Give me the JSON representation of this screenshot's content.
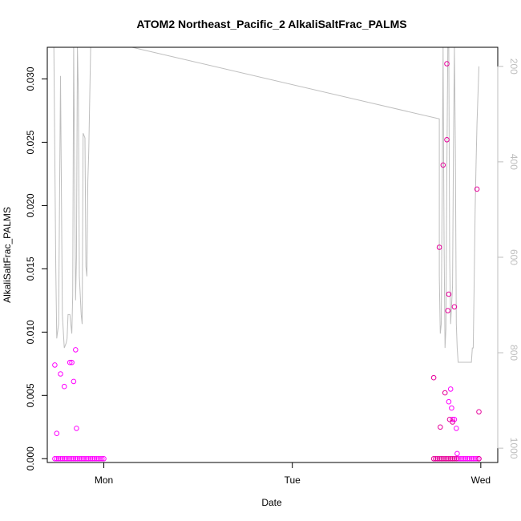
{
  "chart_data": {
    "type": "scatter",
    "title": "ATOM2 Northeast_Pacific_2 AlkaliSaltFrac_PALMS",
    "xlabel": "Date",
    "ylabel": "AlkaliSaltFrac_PALMS",
    "x_tick_labels": [
      "Mon",
      "Tue",
      "Wed"
    ],
    "x_ticks": [
      1.0,
      2.0,
      3.0
    ],
    "xlim": [
      0.7,
      3.09
    ],
    "ylim": [
      -0.0003,
      0.0325
    ],
    "y_ticks": [
      "0.000",
      "0.005",
      "0.010",
      "0.015",
      "0.020",
      "0.025",
      "0.030"
    ],
    "y2_ticks": [
      "200",
      "400",
      "600",
      "800",
      "1000"
    ],
    "y2lim": [
      1030,
      160
    ],
    "grid": false,
    "colors": {
      "points_bright": "#ff00ff",
      "points_dark": "#e6009a",
      "secondary_line": "#bebebe",
      "axis": "#000000"
    },
    "series": [
      {
        "marker": "open-circle",
        "color_key": "points_bright",
        "points": [
          [
            0.74,
            0.0074
          ],
          [
            0.75,
            0.002
          ],
          [
            0.77,
            0.0067
          ],
          [
            0.79,
            0.0057
          ],
          [
            0.82,
            0.0076
          ],
          [
            0.83,
            0.0076
          ],
          [
            0.84,
            0.0061
          ],
          [
            0.85,
            0.0086
          ],
          [
            0.855,
            0.0024
          ],
          [
            0.74,
            0.0
          ],
          [
            0.75,
            0.0
          ],
          [
            0.76,
            0.0
          ],
          [
            0.77,
            0.0
          ],
          [
            0.78,
            0.0
          ],
          [
            0.79,
            0.0
          ],
          [
            0.8,
            0.0
          ],
          [
            0.81,
            0.0
          ],
          [
            0.82,
            0.0
          ],
          [
            0.83,
            0.0
          ],
          [
            0.84,
            0.0
          ],
          [
            0.85,
            0.0
          ],
          [
            0.86,
            0.0
          ],
          [
            0.87,
            0.0
          ],
          [
            0.88,
            0.0
          ],
          [
            0.89,
            0.0
          ],
          [
            0.9,
            0.0
          ],
          [
            0.91,
            0.0
          ],
          [
            0.92,
            0.0
          ],
          [
            0.93,
            0.0
          ],
          [
            0.94,
            0.0
          ],
          [
            0.95,
            0.0
          ],
          [
            0.96,
            0.0
          ],
          [
            0.97,
            0.0
          ],
          [
            0.98,
            0.0
          ],
          [
            0.99,
            0.0
          ],
          [
            1.0,
            0.0
          ],
          [
            2.83,
            0.0045
          ],
          [
            2.84,
            0.0055
          ],
          [
            2.845,
            0.004
          ],
          [
            2.85,
            0.0031
          ],
          [
            2.86,
            0.0031
          ],
          [
            2.87,
            0.0024
          ],
          [
            2.875,
            0.0004
          ],
          [
            2.88,
            0.0
          ],
          [
            2.89,
            0.0
          ],
          [
            2.9,
            0.0
          ],
          [
            2.91,
            0.0
          ],
          [
            2.92,
            0.0
          ],
          [
            2.93,
            0.0
          ],
          [
            2.94,
            0.0
          ],
          [
            2.95,
            0.0
          ],
          [
            2.96,
            0.0
          ],
          [
            2.97,
            0.0
          ],
          [
            2.98,
            0.0
          ],
          [
            2.99,
            0.0
          ]
        ]
      },
      {
        "marker": "open-circle",
        "color_key": "points_dark",
        "points": [
          [
            2.75,
            0.0064
          ],
          [
            2.78,
            0.0167
          ],
          [
            2.785,
            0.0025
          ],
          [
            2.8,
            0.0232
          ],
          [
            2.81,
            0.0052
          ],
          [
            2.82,
            0.0312
          ],
          [
            2.82,
            0.0252
          ],
          [
            2.825,
            0.0117
          ],
          [
            2.83,
            0.013
          ],
          [
            2.835,
            0.0031
          ],
          [
            2.85,
            0.0029
          ],
          [
            2.86,
            0.012
          ],
          [
            2.98,
            0.0213
          ],
          [
            2.99,
            0.0037
          ],
          [
            2.75,
            0.0
          ],
          [
            2.76,
            0.0
          ],
          [
            2.77,
            0.0
          ],
          [
            2.78,
            0.0
          ],
          [
            2.79,
            0.0
          ],
          [
            2.8,
            0.0
          ],
          [
            2.81,
            0.0
          ],
          [
            2.82,
            0.0
          ],
          [
            2.83,
            0.0
          ],
          [
            2.84,
            0.0
          ],
          [
            2.85,
            0.0
          ],
          [
            2.86,
            0.0
          ],
          [
            2.87,
            0.0
          ],
          [
            2.99,
            0.0
          ]
        ]
      }
    ],
    "secondary_series": {
      "type": "line",
      "axis": "right",
      "color_key": "secondary_line",
      "points": [
        [
          0.735,
          160
        ],
        [
          0.745,
          620
        ],
        [
          0.75,
          770
        ],
        [
          0.76,
          740
        ],
        [
          0.77,
          220
        ],
        [
          0.78,
          720
        ],
        [
          0.79,
          790
        ],
        [
          0.8,
          780
        ],
        [
          0.805,
          770
        ],
        [
          0.81,
          720
        ],
        [
          0.82,
          720
        ],
        [
          0.83,
          760
        ],
        [
          0.835,
          680
        ],
        [
          0.84,
          160
        ],
        [
          0.85,
          690
        ],
        [
          0.855,
          600
        ],
        [
          0.86,
          160
        ],
        [
          0.865,
          260
        ],
        [
          0.87,
          640
        ],
        [
          0.88,
          720
        ],
        [
          0.885,
          740
        ],
        [
          0.89,
          340
        ],
        [
          0.9,
          350
        ],
        [
          0.905,
          620
        ],
        [
          0.91,
          640
        ],
        [
          0.915,
          440
        ],
        [
          0.92,
          380
        ],
        [
          0.93,
          160
        ],
        [
          1.05,
          160
        ],
        [
          1.15,
          160
        ],
        [
          2.78,
          310
        ],
        [
          2.78,
          640
        ],
        [
          2.785,
          760
        ],
        [
          2.79,
          740
        ],
        [
          2.795,
          470
        ],
        [
          2.8,
          160
        ],
        [
          2.805,
          560
        ],
        [
          2.81,
          790
        ],
        [
          2.815,
          750
        ],
        [
          2.82,
          420
        ],
        [
          2.825,
          160
        ],
        [
          2.83,
          160
        ],
        [
          2.835,
          600
        ],
        [
          2.84,
          740
        ],
        [
          2.85,
          660
        ],
        [
          2.855,
          380
        ],
        [
          2.86,
          160
        ],
        [
          2.865,
          370
        ],
        [
          2.87,
          740
        ],
        [
          2.875,
          790
        ],
        [
          2.88,
          820
        ],
        [
          2.89,
          820
        ],
        [
          2.95,
          820
        ],
        [
          2.955,
          790
        ],
        [
          2.96,
          790
        ],
        [
          2.965,
          650
        ],
        [
          2.97,
          500
        ],
        [
          2.975,
          400
        ],
        [
          2.98,
          320
        ],
        [
          2.99,
          200
        ]
      ]
    }
  }
}
